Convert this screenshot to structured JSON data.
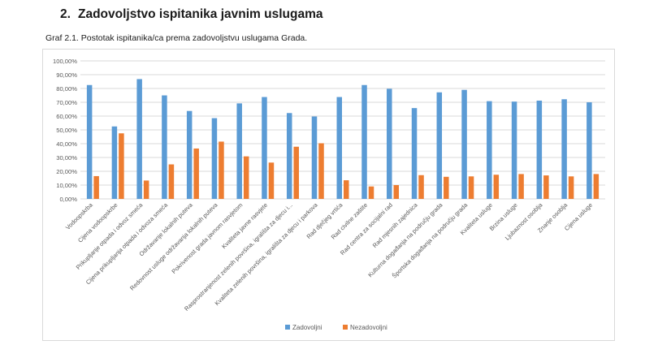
{
  "heading": {
    "number": "2.",
    "title": "Zadovoljstvo ispitanika javnim uslugama"
  },
  "caption": "Graf 2.1. Postotak ispitanika/ca prema zadovoljstvu uslugama Grada.",
  "colors": {
    "zadovoljni": "#5B9BD5",
    "nezadovoljni": "#ED7D31",
    "grid": "#d9d9d9",
    "axis_text": "#595959"
  },
  "chart_data": {
    "type": "bar",
    "title": "",
    "xlabel": "",
    "ylabel": "",
    "ylim": [
      0,
      100
    ],
    "ytick_step": 10,
    "ytick_labels": [
      "0,00%",
      "10,00%",
      "20,00%",
      "30,00%",
      "40,00%",
      "50,00%",
      "60,00%",
      "70,00%",
      "80,00%",
      "90,00%",
      "100,00%"
    ],
    "grid": true,
    "legend_position": "bottom",
    "categories": [
      "Vodoopskrba",
      "Cijena vodoopskrbe",
      "Prikupljanje otpada i odvoz smeća",
      "Cijena prikupljanja otpada i odvoza smeća",
      "Održavanje lokalnih puteva",
      "Redovnost usluge održavanja lokalnih puteva",
      "Pokrivenost grada javnom rasvjetom",
      "Kvaliteta javne rasvjete",
      "Rasprostranjenost zelenih površina, igrališta za djecu i...",
      "Kvaliteta zelenih površina, igrališta za djecu i parkova",
      "Rad dječjeg vrtića",
      "Rad civilne zaštite",
      "Rad centra za socijalni rad",
      "Rad mjesnih zajednica",
      "Kulturna događanja na području grada",
      "Športska događanja na području grada",
      "Kvaliteta usluge",
      "Brzina usluge",
      "Ljubaznost osoblja",
      "Znanje osoblja",
      "Cijena usluge"
    ],
    "series": [
      {
        "name": "Zadovoljni",
        "values": [
          82.5,
          52.5,
          86.8,
          75.0,
          63.7,
          58.5,
          69.2,
          73.8,
          62.2,
          59.7,
          73.8,
          82.5,
          79.8,
          65.8,
          77.2,
          79.0,
          70.8,
          70.5,
          71.2,
          72.2,
          70.0
        ]
      },
      {
        "name": "Nezadovoljni",
        "values": [
          16.5,
          47.5,
          13.3,
          25.0,
          36.5,
          41.5,
          30.8,
          26.3,
          37.8,
          40.3,
          13.5,
          9.0,
          10.0,
          17.2,
          16.0,
          16.3,
          17.5,
          18.0,
          17.0,
          16.3,
          18.0
        ]
      }
    ]
  }
}
